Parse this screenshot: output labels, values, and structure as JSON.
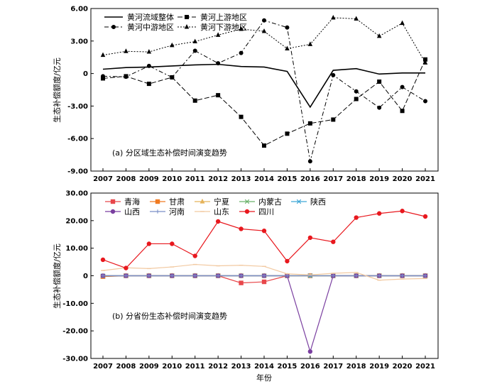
{
  "chart_data": [
    {
      "type": "line",
      "title": "",
      "annotation": "(a) 分区域生态补偿时间演变趋势",
      "xlabel": "",
      "ylabel": "生态补偿额度/亿元",
      "x": [
        2007,
        2008,
        2009,
        2010,
        2011,
        2012,
        2013,
        2014,
        2015,
        2016,
        2017,
        2018,
        2019,
        2020,
        2021
      ],
      "ylim": [
        -9.0,
        6.0
      ],
      "yticks": [
        "6.00",
        "3.00",
        "0",
        "-3.00",
        "-6.00",
        "-9.00"
      ],
      "legend_position": "top-left",
      "series": [
        {
          "name": "黄河流域整体",
          "style": "solid",
          "marker": "none",
          "color": "#000000",
          "values": [
            0.4,
            0.55,
            0.6,
            0.7,
            0.8,
            0.85,
            0.65,
            0.6,
            0.2,
            -3.1,
            0.3,
            0.45,
            -0.05,
            0.05,
            0.05
          ]
        },
        {
          "name": "黄河上游地区",
          "style": "dash",
          "marker": "square",
          "color": "#000000",
          "values": [
            -0.45,
            -0.25,
            -0.95,
            -0.35,
            -2.5,
            -2.0,
            -4.0,
            -6.65,
            -5.55,
            -4.6,
            -4.25,
            -2.35,
            -0.75,
            -3.45,
            1.3
          ]
        },
        {
          "name": "黄河中游地区",
          "style": "dashdot",
          "marker": "circle",
          "color": "#000000",
          "values": [
            -0.25,
            -0.3,
            0.7,
            -0.35,
            2.1,
            0.95,
            1.9,
            4.9,
            4.25,
            -8.1,
            -0.15,
            -1.65,
            -3.15,
            -1.25,
            -2.55
          ]
        },
        {
          "name": "黄河下游地区",
          "style": "dot",
          "marker": "triangle",
          "color": "#000000",
          "values": [
            1.7,
            2.05,
            2.0,
            2.6,
            2.95,
            3.55,
            4.1,
            3.9,
            2.3,
            2.7,
            5.15,
            5.05,
            3.45,
            4.65,
            1.0
          ]
        }
      ]
    },
    {
      "type": "line",
      "title": "",
      "annotation": "(b) 分省份生态补偿时间演变趋势",
      "xlabel": "年份",
      "ylabel": "生态补偿额度/亿元",
      "x": [
        2007,
        2008,
        2009,
        2010,
        2011,
        2012,
        2013,
        2014,
        2015,
        2016,
        2017,
        2018,
        2019,
        2020,
        2021
      ],
      "ylim": [
        -30.0,
        30.0
      ],
      "yticks": [
        "30.00",
        "20.00",
        "10.00",
        "0",
        "-10.00",
        "-20.00",
        "-30.00"
      ],
      "legend_position": "top-left",
      "series": [
        {
          "name": "青海",
          "marker": "square",
          "color": "#e8474b",
          "values": [
            -0.2,
            0,
            0,
            0,
            0,
            0,
            -2.6,
            -2.2,
            0,
            0,
            0,
            0,
            0,
            0,
            0
          ]
        },
        {
          "name": "甘肃",
          "marker": "square",
          "color": "#f07b22",
          "values": [
            -0.3,
            0,
            0,
            0,
            0,
            0,
            0,
            0,
            0,
            0,
            0,
            0,
            0,
            0,
            0
          ]
        },
        {
          "name": "宁夏",
          "marker": "triangle",
          "color": "#e5b35a",
          "values": [
            0,
            0,
            0,
            0,
            0,
            0,
            0,
            0,
            0,
            0,
            0,
            0,
            0,
            0,
            0
          ]
        },
        {
          "name": "内蒙古",
          "marker": "x",
          "color": "#6bb26b",
          "values": [
            0,
            0,
            0,
            0,
            0,
            0,
            0,
            0,
            0,
            0,
            0,
            0,
            0,
            0,
            0
          ]
        },
        {
          "name": "陕西",
          "marker": "x",
          "color": "#3da6d6",
          "values": [
            0,
            0,
            0,
            0,
            0,
            0,
            0,
            0,
            0,
            0,
            0,
            0,
            0,
            0,
            0
          ]
        },
        {
          "name": "山西",
          "marker": "circle",
          "color": "#7a3fa0",
          "values": [
            0,
            0,
            0,
            0,
            0,
            0,
            0,
            0,
            0,
            -27.5,
            0,
            0,
            0,
            0,
            0
          ]
        },
        {
          "name": "河南",
          "marker": "plus",
          "color": "#7b8fc6",
          "values": [
            0,
            0,
            0,
            0,
            0,
            0,
            0,
            0,
            0,
            0,
            0,
            0,
            0,
            0,
            0
          ]
        },
        {
          "name": "山东",
          "marker": "dash",
          "color": "#f2c9a1",
          "values": [
            1.9,
            2.9,
            2.6,
            3.2,
            4.1,
            3.6,
            3.8,
            3.4,
            0.7,
            0.3,
            0.9,
            1.2,
            -1.6,
            -1.2,
            -1.0
          ]
        },
        {
          "name": "四川",
          "marker": "circle",
          "color": "#e8181e",
          "values": [
            5.8,
            2.8,
            11.6,
            11.6,
            7.2,
            19.7,
            17.0,
            16.3,
            5.3,
            13.8,
            12.3,
            21.1,
            22.6,
            23.5,
            21.5
          ]
        }
      ]
    }
  ]
}
